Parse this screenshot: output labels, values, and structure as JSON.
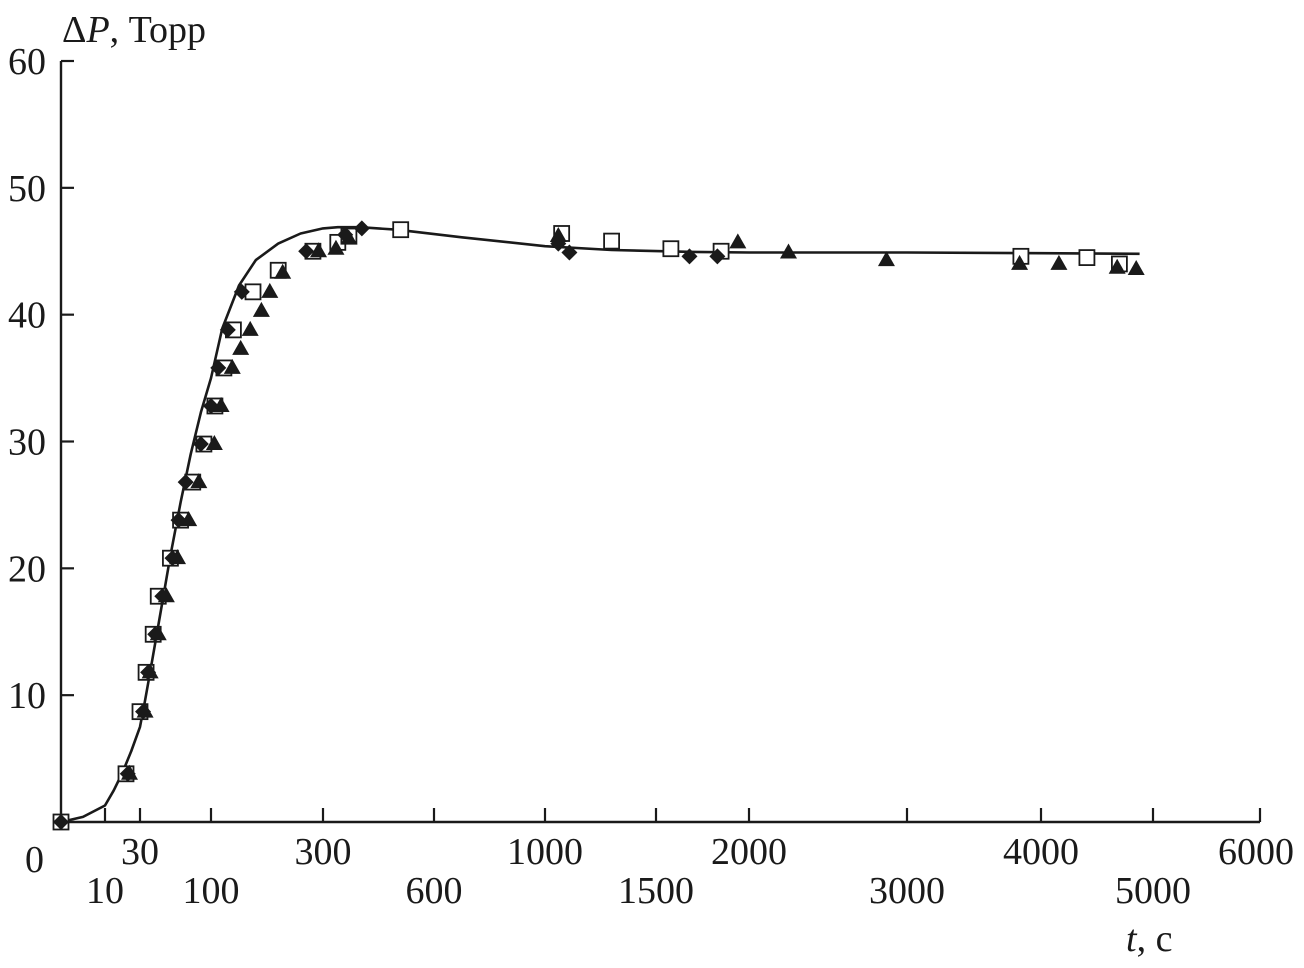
{
  "chart_data": {
    "type": "scatter",
    "title": "",
    "ylabel": {
      "prefix": "Δ",
      "symbol": "P",
      "unit": ", Торр"
    },
    "xlabel": {
      "symbol": "t",
      "unit": ", с"
    },
    "x_scale": "piecewise (ticks unevenly spaced)",
    "ylim": [
      0,
      60
    ],
    "y_ticks": [
      "0",
      "10",
      "20",
      "30",
      "40",
      "50",
      "60"
    ],
    "x_tick_labels_upper": [
      "30",
      "300",
      "1000",
      "2000",
      "4000",
      "6000"
    ],
    "x_tick_labels_lower": [
      "10",
      "100",
      "600",
      "1500",
      "3000",
      "5000"
    ],
    "x_tick_values": [
      10,
      30,
      100,
      300,
      600,
      1000,
      1500,
      2000,
      3000,
      4000,
      5000,
      6000
    ],
    "grid": false,
    "legend": "none",
    "series": [
      {
        "marker": "open-square",
        "points": [
          [
            0,
            0
          ],
          [
            22,
            3.8
          ],
          [
            30,
            8.7
          ],
          [
            36,
            11.8
          ],
          [
            43,
            14.8
          ],
          [
            48,
            17.8
          ],
          [
            60,
            20.8
          ],
          [
            70,
            23.8
          ],
          [
            82,
            26.8
          ],
          [
            93,
            29.8
          ],
          [
            107,
            32.8
          ],
          [
            123,
            35.8
          ],
          [
            140,
            38.8
          ],
          [
            175,
            41.8
          ],
          [
            220,
            43.5
          ],
          [
            282,
            45
          ],
          [
            340,
            45.7
          ],
          [
            370,
            46.2
          ],
          [
            510,
            46.7
          ],
          [
            1075,
            46.4
          ],
          [
            1300,
            45.8
          ],
          [
            1580,
            45.2
          ],
          [
            1850,
            45
          ],
          [
            3850,
            44.6
          ],
          [
            4410,
            44.5
          ],
          [
            4700,
            44
          ]
        ]
      },
      {
        "marker": "filled-diamond",
        "points": [
          [
            0,
            0
          ],
          [
            23,
            3.8
          ],
          [
            33,
            8.7
          ],
          [
            38,
            11.8
          ],
          [
            45,
            14.8
          ],
          [
            52,
            17.8
          ],
          [
            62,
            20.8
          ],
          [
            68,
            23.8
          ],
          [
            75,
            26.8
          ],
          [
            90,
            29.8
          ],
          [
            100,
            32.8
          ],
          [
            113,
            35.8
          ],
          [
            130,
            38.8
          ],
          [
            155,
            41.8
          ],
          [
            270,
            45
          ],
          [
            360,
            46.3
          ],
          [
            405,
            46.8
          ],
          [
            1060,
            45.6
          ],
          [
            1110,
            44.9
          ],
          [
            1680,
            44.6
          ],
          [
            1830,
            44.6
          ]
        ]
      },
      {
        "marker": "filled-triangle",
        "points": [
          [
            24,
            3.8
          ],
          [
            35,
            8.7
          ],
          [
            40,
            11.8
          ],
          [
            48,
            14.8
          ],
          [
            56,
            17.8
          ],
          [
            67,
            20.8
          ],
          [
            78,
            23.8
          ],
          [
            88,
            26.8
          ],
          [
            106,
            29.8
          ],
          [
            118,
            32.8
          ],
          [
            138,
            35.8
          ],
          [
            153,
            37.3
          ],
          [
            170,
            38.8
          ],
          [
            190,
            40.3
          ],
          [
            205,
            41.8
          ],
          [
            228,
            43.3
          ],
          [
            292,
            45
          ],
          [
            335,
            45.2
          ],
          [
            370,
            46
          ],
          [
            1060,
            46.2
          ],
          [
            1940,
            45.7
          ],
          [
            2250,
            44.9
          ],
          [
            2870,
            44.3
          ],
          [
            3840,
            44
          ],
          [
            4160,
            44
          ],
          [
            4680,
            43.7
          ],
          [
            4850,
            43.6
          ]
        ]
      },
      {
        "marker": "line",
        "points": [
          [
            0,
            0
          ],
          [
            5,
            0.4
          ],
          [
            10,
            1.3
          ],
          [
            15,
            2.5
          ],
          [
            20,
            3.9
          ],
          [
            25,
            5.6
          ],
          [
            30,
            7.5
          ],
          [
            35,
            9.6
          ],
          [
            40,
            11.8
          ],
          [
            50,
            16.4
          ],
          [
            60,
            21
          ],
          [
            70,
            25.2
          ],
          [
            80,
            29
          ],
          [
            90,
            32.3
          ],
          [
            100,
            35
          ],
          [
            120,
            38.9
          ],
          [
            150,
            42.3
          ],
          [
            180,
            44.3
          ],
          [
            220,
            45.6
          ],
          [
            260,
            46.4
          ],
          [
            300,
            46.8
          ],
          [
            340,
            46.9
          ],
          [
            400,
            46.9
          ],
          [
            500,
            46.7
          ],
          [
            700,
            46.1
          ],
          [
            1000,
            45.4
          ],
          [
            1300,
            45.1
          ],
          [
            1700,
            44.95
          ],
          [
            2000,
            44.9
          ],
          [
            3000,
            44.9
          ],
          [
            4000,
            44.85
          ],
          [
            4880,
            44.8
          ]
        ]
      }
    ]
  }
}
